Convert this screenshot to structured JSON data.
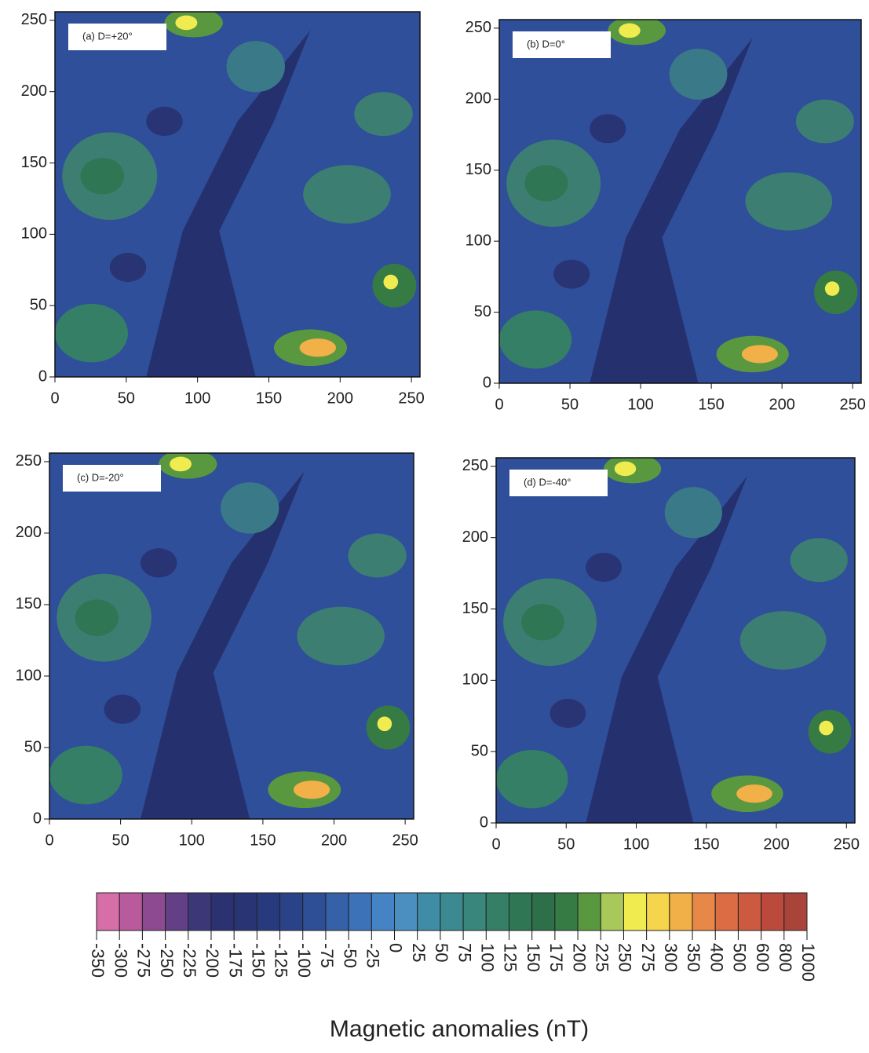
{
  "chart_data": [
    {
      "type": "heatmap",
      "title": "(a) D=+20°",
      "xlim": [
        0,
        256
      ],
      "ylim": [
        0,
        256
      ],
      "xticks": [
        0,
        50,
        100,
        150,
        200,
        250
      ],
      "yticks": [
        0,
        50,
        100,
        150,
        200,
        250
      ]
    },
    {
      "type": "heatmap",
      "title": "(b) D=0°",
      "xlim": [
        0,
        256
      ],
      "ylim": [
        0,
        256
      ],
      "xticks": [
        0,
        50,
        100,
        150,
        200,
        250
      ],
      "yticks": [
        0,
        50,
        100,
        150,
        200,
        250
      ]
    },
    {
      "type": "heatmap",
      "title": "(c) D=-20°",
      "xlim": [
        0,
        256
      ],
      "ylim": [
        0,
        256
      ],
      "xticks": [
        0,
        50,
        100,
        150,
        200,
        250
      ],
      "yticks": [
        0,
        50,
        100,
        150,
        200,
        250
      ]
    },
    {
      "type": "heatmap",
      "title": "(d) D=-40°",
      "xlim": [
        0,
        256
      ],
      "ylim": [
        0,
        256
      ],
      "xticks": [
        0,
        50,
        100,
        150,
        200,
        250
      ],
      "yticks": [
        0,
        50,
        100,
        150,
        200,
        250
      ]
    },
    {
      "type": "colorbar",
      "title": "Magnetic anomalies (nT)",
      "ticks": [
        -350,
        -300,
        -275,
        -250,
        -225,
        -200,
        -175,
        -150,
        -125,
        -100,
        -75,
        -50,
        -25,
        0,
        25,
        50,
        75,
        100,
        125,
        150,
        175,
        200,
        225,
        250,
        275,
        300,
        350,
        400,
        500,
        600,
        800,
        1000
      ],
      "colors": [
        "#d66fa8",
        "#b85a9c",
        "#8e4a90",
        "#623f86",
        "#3c3878",
        "#2c3172",
        "#283474",
        "#283a7e",
        "#2a4388",
        "#2e4e96",
        "#3561a8",
        "#3c72b8",
        "#4584c4",
        "#4a8fc0",
        "#3f8ca6",
        "#3b8a92",
        "#38867c",
        "#347f66",
        "#2f7654",
        "#2c6f48",
        "#367a44",
        "#5a9840",
        "#a8c85a",
        "#f0ec50",
        "#f6d44c",
        "#f2b048",
        "#e88848",
        "#dc6c44",
        "#cc5a40",
        "#bc4a3c",
        "#a8443a"
      ]
    }
  ]
}
